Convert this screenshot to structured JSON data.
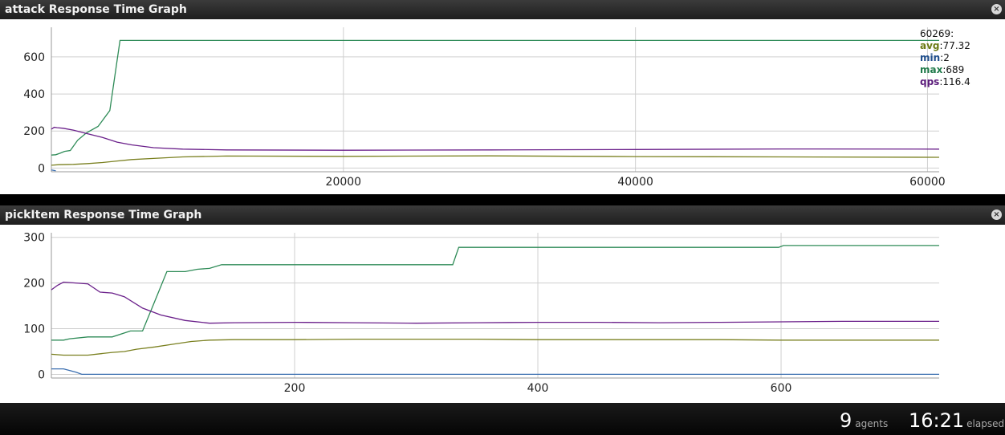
{
  "panels": [
    {
      "title": "attack Response Time Graph",
      "close": "×"
    },
    {
      "title": "pickItem Response Time Graph",
      "close": "×"
    }
  ],
  "legend": {
    "head": "60269:",
    "items": [
      {
        "key": "avg",
        "value": ":77.32",
        "color": "#6b7a14"
      },
      {
        "key": "min",
        "value": ":2",
        "color": "#1f4e8c"
      },
      {
        "key": "max",
        "value": ":689",
        "color": "#1f7a4a"
      },
      {
        "key": "qps",
        "value": ":116.4",
        "color": "#5a1a7a"
      }
    ]
  },
  "colors": {
    "avg": "#7a8020",
    "min": "#3b6fb0",
    "max": "#2e8b57",
    "qps": "#6a1f8a"
  },
  "chart_data": [
    {
      "type": "line",
      "title": "attack Response Time Graph",
      "xlim": [
        0,
        60800
      ],
      "ylim": [
        -20,
        760
      ],
      "xticks": [
        20000,
        40000,
        60000
      ],
      "yticks": [
        0,
        200,
        400,
        600
      ],
      "grid": true,
      "legend": "top-right",
      "series": [
        {
          "name": "max",
          "x": [
            0,
            300,
            600,
            900,
            1300,
            1800,
            2400,
            3200,
            4000,
            4700,
            5000,
            6000,
            10000,
            20000,
            30000,
            40000,
            50000,
            60800
          ],
          "y": [
            70,
            72,
            80,
            90,
            95,
            150,
            190,
            225,
            310,
            689,
            689,
            689,
            689,
            689,
            689,
            689,
            689,
            689
          ]
        },
        {
          "name": "qps",
          "x": [
            0,
            200,
            400,
            800,
            1500,
            2500,
            3500,
            4500,
            5500,
            7000,
            9000,
            12000,
            20000,
            30000,
            40000,
            50000,
            60800
          ],
          "y": [
            210,
            220,
            218,
            215,
            205,
            185,
            165,
            140,
            125,
            110,
            102,
            98,
            96,
            98,
            100,
            103,
            102
          ]
        },
        {
          "name": "avg",
          "x": [
            0,
            500,
            1500,
            2500,
            3500,
            4500,
            5500,
            7000,
            9000,
            12000,
            20000,
            30000,
            40000,
            50000,
            60800
          ],
          "y": [
            15,
            18,
            20,
            24,
            30,
            38,
            46,
            52,
            60,
            65,
            63,
            66,
            62,
            60,
            58
          ]
        },
        {
          "name": "min",
          "x": [
            0,
            300
          ],
          "y": [
            -10,
            -15
          ]
        }
      ]
    },
    {
      "type": "line",
      "title": "pickItem Response Time Graph",
      "xlim": [
        0,
        730
      ],
      "ylim": [
        -8,
        310
      ],
      "xticks": [
        200,
        400,
        600
      ],
      "yticks": [
        0,
        100,
        200,
        300
      ],
      "grid": true,
      "series": [
        {
          "name": "max",
          "x": [
            0,
            10,
            15,
            30,
            40,
            50,
            65,
            75,
            85,
            95,
            110,
            120,
            130,
            140,
            200,
            300,
            330,
            335,
            400,
            500,
            598,
            602,
            650,
            730
          ],
          "y": [
            75,
            75,
            78,
            82,
            82,
            82,
            95,
            95,
            160,
            225,
            225,
            230,
            232,
            240,
            240,
            240,
            240,
            278,
            278,
            278,
            278,
            282,
            282,
            282
          ]
        },
        {
          "name": "qps",
          "x": [
            0,
            5,
            10,
            20,
            30,
            40,
            50,
            60,
            75,
            90,
            110,
            130,
            150,
            200,
            250,
            300,
            350,
            400,
            450,
            500,
            550,
            600,
            650,
            730
          ],
          "y": [
            185,
            195,
            202,
            200,
            198,
            180,
            178,
            170,
            145,
            130,
            118,
            112,
            113,
            114,
            113,
            112,
            113,
            114,
            114,
            113,
            114,
            115,
            116,
            116
          ]
        },
        {
          "name": "avg",
          "x": [
            0,
            10,
            20,
            30,
            40,
            50,
            60,
            70,
            85,
            100,
            115,
            130,
            150,
            200,
            250,
            300,
            350,
            400,
            450,
            500,
            550,
            600,
            650,
            730
          ],
          "y": [
            44,
            42,
            42,
            42,
            45,
            48,
            50,
            55,
            60,
            66,
            72,
            75,
            76,
            76,
            77,
            77,
            77,
            76,
            76,
            76,
            76,
            75,
            75,
            75
          ]
        },
        {
          "name": "min",
          "x": [
            0,
            10,
            20,
            25,
            30,
            100,
            200,
            400,
            600,
            730
          ],
          "y": [
            12,
            12,
            5,
            0,
            0,
            0,
            0,
            0,
            0,
            0
          ]
        }
      ]
    }
  ],
  "footer": {
    "agents_count": "9",
    "agents_label": "agents",
    "elapsed_value": "16:21",
    "elapsed_label": "elapsed"
  }
}
